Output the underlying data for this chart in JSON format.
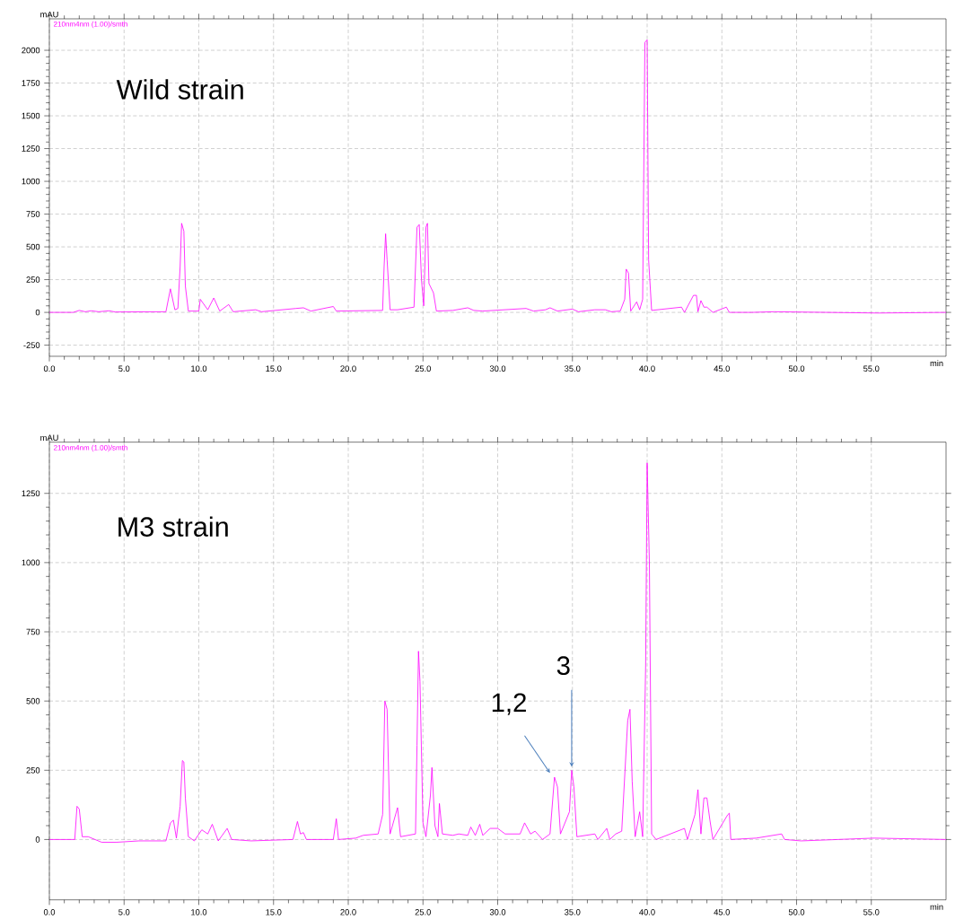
{
  "chart_data": [
    {
      "type": "line",
      "title": "Wild strain",
      "xlabel": "min",
      "ylabel": "mAU",
      "color": "#ff00ff",
      "grid": true,
      "annotations": [
        "210nm4nm (1.00)/smth"
      ],
      "xlim": [
        0,
        60
      ],
      "ylim": [
        -335,
        2240
      ],
      "xticks": [
        {
          "value": 0,
          "label": "0.0"
        },
        {
          "value": 5,
          "label": "5.0"
        },
        {
          "value": 10,
          "label": "10.0"
        },
        {
          "value": 15,
          "label": "15.0"
        },
        {
          "value": 20,
          "label": "20.0"
        },
        {
          "value": 25,
          "label": "25.0"
        },
        {
          "value": 30,
          "label": "30.0"
        },
        {
          "value": 35,
          "label": "35.0"
        },
        {
          "value": 40,
          "label": "40.0"
        },
        {
          "value": 45,
          "label": "45.0"
        },
        {
          "value": 50,
          "label": "50.0"
        },
        {
          "value": 55,
          "label": "55.0"
        }
      ],
      "yticks": [
        -250,
        0,
        250,
        500,
        750,
        1000,
        1250,
        1500,
        1750,
        2000
      ],
      "x": [
        0,
        1.6,
        2.0,
        2.4,
        2.8,
        3.3,
        4.0,
        4.4,
        7.8,
        8.1,
        8.4,
        8.6,
        8.75,
        8.85,
        9.0,
        9.1,
        9.3,
        10.0,
        10.1,
        10.6,
        11.0,
        11.4,
        12.0,
        12.3,
        13.8,
        14.2,
        16.5,
        17.0,
        17.5,
        19.0,
        19.2,
        22.3,
        22.4,
        22.5,
        22.6,
        22.8,
        23.3,
        24.4,
        24.6,
        24.75,
        24.9,
        25.05,
        25.2,
        25.3,
        25.4,
        25.7,
        25.9,
        27.0,
        28.0,
        28.4,
        29.0,
        31.9,
        32.4,
        33.2,
        33.5,
        34.0,
        35.0,
        35.4,
        36.5,
        37.2,
        37.6,
        38.2,
        38.5,
        38.6,
        38.75,
        38.9,
        39.3,
        39.5,
        39.7,
        39.85,
        40.0,
        40.1,
        40.3,
        42.3,
        42.5,
        43.1,
        43.3,
        43.4,
        43.6,
        43.8,
        44.0,
        44.4,
        45.3,
        45.5,
        47.0,
        48.5,
        55.5,
        60
      ],
      "values": [
        0,
        0,
        15,
        5,
        12,
        5,
        12,
        3,
        5,
        180,
        20,
        30,
        350,
        680,
        620,
        200,
        10,
        10,
        100,
        20,
        110,
        10,
        60,
        5,
        20,
        5,
        30,
        35,
        10,
        45,
        10,
        15,
        350,
        600,
        400,
        20,
        20,
        40,
        650,
        670,
        250,
        50,
        650,
        680,
        220,
        150,
        10,
        15,
        35,
        15,
        10,
        30,
        10,
        20,
        35,
        10,
        25,
        5,
        20,
        20,
        5,
        10,
        100,
        330,
        300,
        10,
        80,
        20,
        100,
        2060,
        2080,
        400,
        15,
        40,
        0,
        130,
        130,
        5,
        90,
        40,
        40,
        0,
        40,
        0,
        0,
        5,
        -5,
        0
      ]
    },
    {
      "type": "line",
      "title": "M3 strain",
      "xlabel": "min",
      "ylabel": "mAU",
      "color": "#ff00ff",
      "grid": true,
      "annotations": [
        "210nm4nm (1.00)/smth",
        {
          "text": "1,2",
          "x": 33.8,
          "y": 225
        },
        {
          "text": "3",
          "x": 34.95,
          "y": 250
        }
      ],
      "xlim": [
        0,
        60
      ],
      "ylim": [
        -218,
        1435
      ],
      "xticks": [
        {
          "value": 0,
          "label": "0.0"
        },
        {
          "value": 5,
          "label": "5.0"
        },
        {
          "value": 10,
          "label": "10.0"
        },
        {
          "value": 15,
          "label": "15.0"
        },
        {
          "value": 20,
          "label": "20.0"
        },
        {
          "value": 25,
          "label": "25.0"
        },
        {
          "value": 30,
          "label": "30.0"
        },
        {
          "value": 35,
          "label": "35.0"
        },
        {
          "value": 40,
          "label": "40.0"
        },
        {
          "value": 45,
          "label": "45.0"
        },
        {
          "value": 50,
          "label": "50.0"
        },
        {
          "value": 55,
          "label": "55.0"
        }
      ],
      "yticks": [
        0,
        250,
        500,
        750,
        1000,
        1250
      ],
      "x": [
        0,
        1.7,
        1.85,
        2.0,
        2.2,
        2.6,
        3.5,
        4.5,
        6.0,
        7.8,
        8.1,
        8.3,
        8.5,
        8.75,
        8.9,
        9.0,
        9.1,
        9.3,
        9.7,
        10.2,
        10.6,
        10.9,
        11.3,
        11.9,
        12.2,
        13.5,
        16.3,
        16.6,
        16.8,
        17.0,
        17.2,
        19.0,
        19.2,
        19.35,
        20.5,
        21.0,
        22.0,
        22.3,
        22.45,
        22.6,
        22.8,
        23.3,
        23.5,
        24.0,
        24.5,
        24.6,
        24.7,
        24.8,
        25.0,
        25.2,
        25.5,
        25.6,
        25.8,
        26.0,
        26.1,
        26.3,
        27.0,
        27.4,
        28.0,
        28.2,
        28.5,
        28.8,
        29.0,
        29.5,
        30.0,
        30.5,
        31.5,
        31.8,
        32.2,
        32.5,
        33.0,
        33.5,
        33.8,
        34.0,
        34.2,
        34.8,
        34.95,
        35.1,
        35.3,
        36.5,
        36.7,
        37.3,
        37.5,
        37.9,
        38.3,
        38.7,
        38.85,
        39.0,
        39.2,
        39.5,
        39.7,
        39.9,
        40.0,
        40.15,
        40.3,
        40.6,
        42.5,
        42.7,
        43.2,
        43.4,
        43.6,
        43.8,
        44.0,
        44.2,
        44.4,
        45.4,
        45.5,
        45.6,
        47.3,
        49.0,
        49.2,
        50.3,
        55.2,
        60
      ],
      "values": [
        0,
        0,
        120,
        110,
        10,
        10,
        -10,
        -10,
        -5,
        -5,
        60,
        70,
        5,
        120,
        285,
        280,
        150,
        10,
        -5,
        35,
        20,
        55,
        -5,
        40,
        0,
        -5,
        0,
        65,
        20,
        25,
        0,
        0,
        75,
        0,
        5,
        15,
        20,
        90,
        500,
        470,
        20,
        115,
        10,
        15,
        20,
        340,
        680,
        570,
        60,
        10,
        160,
        260,
        50,
        10,
        130,
        20,
        15,
        20,
        15,
        45,
        15,
        55,
        15,
        40,
        40,
        20,
        20,
        60,
        20,
        30,
        0,
        20,
        225,
        190,
        20,
        100,
        250,
        190,
        10,
        20,
        0,
        40,
        0,
        20,
        30,
        430,
        470,
        210,
        10,
        100,
        10,
        630,
        1360,
        1000,
        20,
        0,
        40,
        0,
        90,
        180,
        20,
        150,
        150,
        70,
        0,
        90,
        95,
        0,
        5,
        20,
        0,
        -5,
        5,
        0
      ]
    }
  ]
}
